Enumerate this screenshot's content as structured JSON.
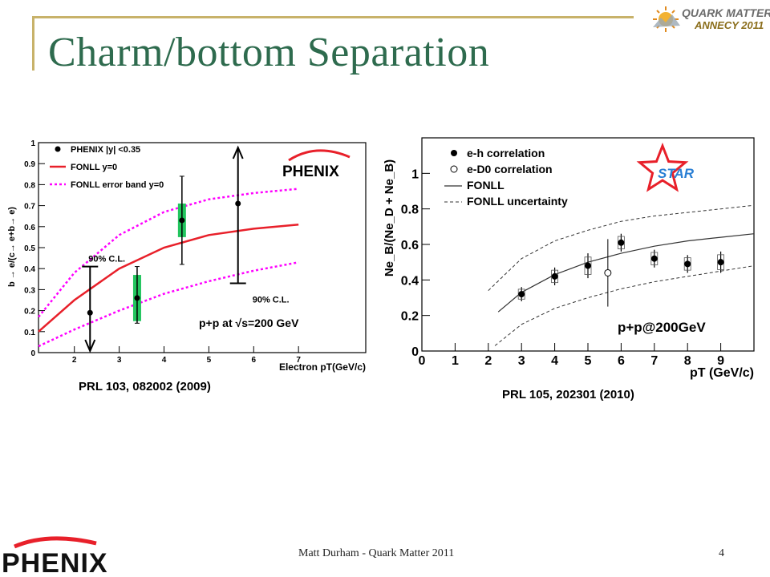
{
  "slide": {
    "title": "Charm/bottom Separation",
    "footer": "Matt Durham - Quark Matter 2011",
    "page_number": "4",
    "logo_top_right_line1": "QUARK MATTER",
    "logo_top_right_line2": "ANNECY 2011",
    "logo_bottom_left": "PHENIX"
  },
  "references": {
    "left": "PRL 103, 082002 (2009)",
    "right": "PRL 105, 202301 (2010)"
  },
  "colors": {
    "title_green": "#2e6b4e",
    "accent_gold": "#c8b26a",
    "fonll_red": "#e8202a",
    "band_magenta": "#ff00ff",
    "sys_green": "#22c55e",
    "star_red": "#e8202a",
    "star_text_blue": "#2a7fd4"
  },
  "chart_data": [
    {
      "type": "scatter",
      "ylabel": "b → e/(c→ e+b→ e)",
      "xlabel": "Electron pT(GeV/c)",
      "xlim": [
        1.2,
        8.5
      ],
      "ylim": [
        0,
        1
      ],
      "x_ticks": [
        "2",
        "3",
        "4",
        "5",
        "6",
        "7"
      ],
      "y_ticks": [
        "0",
        "0.1",
        "0.2",
        "0.3",
        "0.4",
        "0.5",
        "0.6",
        "0.7",
        "0.8",
        "0.9",
        "1"
      ],
      "legend": [
        "PHENIX |y| <0.35",
        "FONLL y=0",
        "FONLL error band y=0"
      ],
      "logo_text": "PHENIX",
      "annotation": "p+p at √s=200 GeV",
      "limit_labels": [
        "90% C.L.",
        "90% C.L."
      ],
      "series": [
        {
          "name": "PHENIX |y| <0.35",
          "x": [
            2.35,
            3.4,
            4.4,
            5.65
          ],
          "y": [
            0.19,
            0.26,
            0.63,
            0.71
          ],
          "err_low": [
            null,
            0.12,
            0.21,
            null
          ],
          "err_high": [
            null,
            0.15,
            0.21,
            null
          ],
          "sys": [
            null,
            0.11,
            0.08,
            null
          ]
        }
      ],
      "upper_limit_x": 2.35,
      "upper_limit_from": 0.41,
      "upper_limit_to": 0.0,
      "lower_limit_x": 5.65,
      "lower_limit_from": 0.33,
      "lower_limit_to": 1.0,
      "fonll_central": {
        "x": [
          1.2,
          2,
          3,
          4,
          5,
          6,
          7
        ],
        "y": [
          0.1,
          0.25,
          0.4,
          0.5,
          0.56,
          0.59,
          0.61
        ]
      },
      "fonll_upper": {
        "x": [
          1.2,
          2,
          3,
          4,
          5,
          6,
          7
        ],
        "y": [
          0.17,
          0.38,
          0.56,
          0.67,
          0.73,
          0.76,
          0.78
        ]
      },
      "fonll_lower": {
        "x": [
          1.2,
          2,
          3,
          4,
          5,
          6,
          7
        ],
        "y": [
          0.03,
          0.11,
          0.2,
          0.28,
          0.34,
          0.39,
          0.43
        ]
      }
    },
    {
      "type": "scatter",
      "ylabel": "Ne_B/(Ne_D + Ne_B)",
      "xlabel": "pT (GeV/c)",
      "xlim": [
        0,
        10
      ],
      "ylim": [
        0,
        1.2
      ],
      "x_ticks": [
        "0",
        "1",
        "2",
        "3",
        "4",
        "5",
        "6",
        "7",
        "8",
        "9"
      ],
      "y_ticks": [
        "0",
        "0.2",
        "0.4",
        "0.6",
        "0.8",
        "1"
      ],
      "legend": [
        "e-h correlation",
        "e-D0 correlation",
        "FONLL",
        "FONLL uncertainty"
      ],
      "logo_text": "STAR",
      "annotation": "p+p@200GeV",
      "series": [
        {
          "name": "e-h correlation",
          "x": [
            3,
            4,
            5,
            6,
            7,
            8,
            9
          ],
          "y": [
            0.32,
            0.42,
            0.48,
            0.61,
            0.52,
            0.49,
            0.5
          ],
          "err": [
            0.04,
            0.05,
            0.07,
            0.05,
            0.05,
            0.05,
            0.06
          ]
        },
        {
          "name": "e-D0 correlation",
          "x": [
            5.6
          ],
          "y": [
            0.44
          ],
          "err": [
            0.19
          ]
        }
      ],
      "fonll_central": {
        "x": [
          2.3,
          3,
          4,
          5,
          6,
          7,
          8,
          9,
          10
        ],
        "y": [
          0.22,
          0.33,
          0.43,
          0.5,
          0.55,
          0.59,
          0.62,
          0.64,
          0.66
        ]
      },
      "fonll_upper": {
        "x": [
          2.0,
          3,
          4,
          5,
          6,
          7,
          8,
          9,
          10
        ],
        "y": [
          0.34,
          0.52,
          0.62,
          0.68,
          0.73,
          0.76,
          0.78,
          0.8,
          0.82
        ]
      },
      "fonll_lower": {
        "x": [
          2.2,
          3,
          4,
          5,
          6,
          7,
          8,
          9,
          10
        ],
        "y": [
          0.03,
          0.15,
          0.24,
          0.3,
          0.35,
          0.39,
          0.42,
          0.45,
          0.48
        ]
      }
    }
  ]
}
